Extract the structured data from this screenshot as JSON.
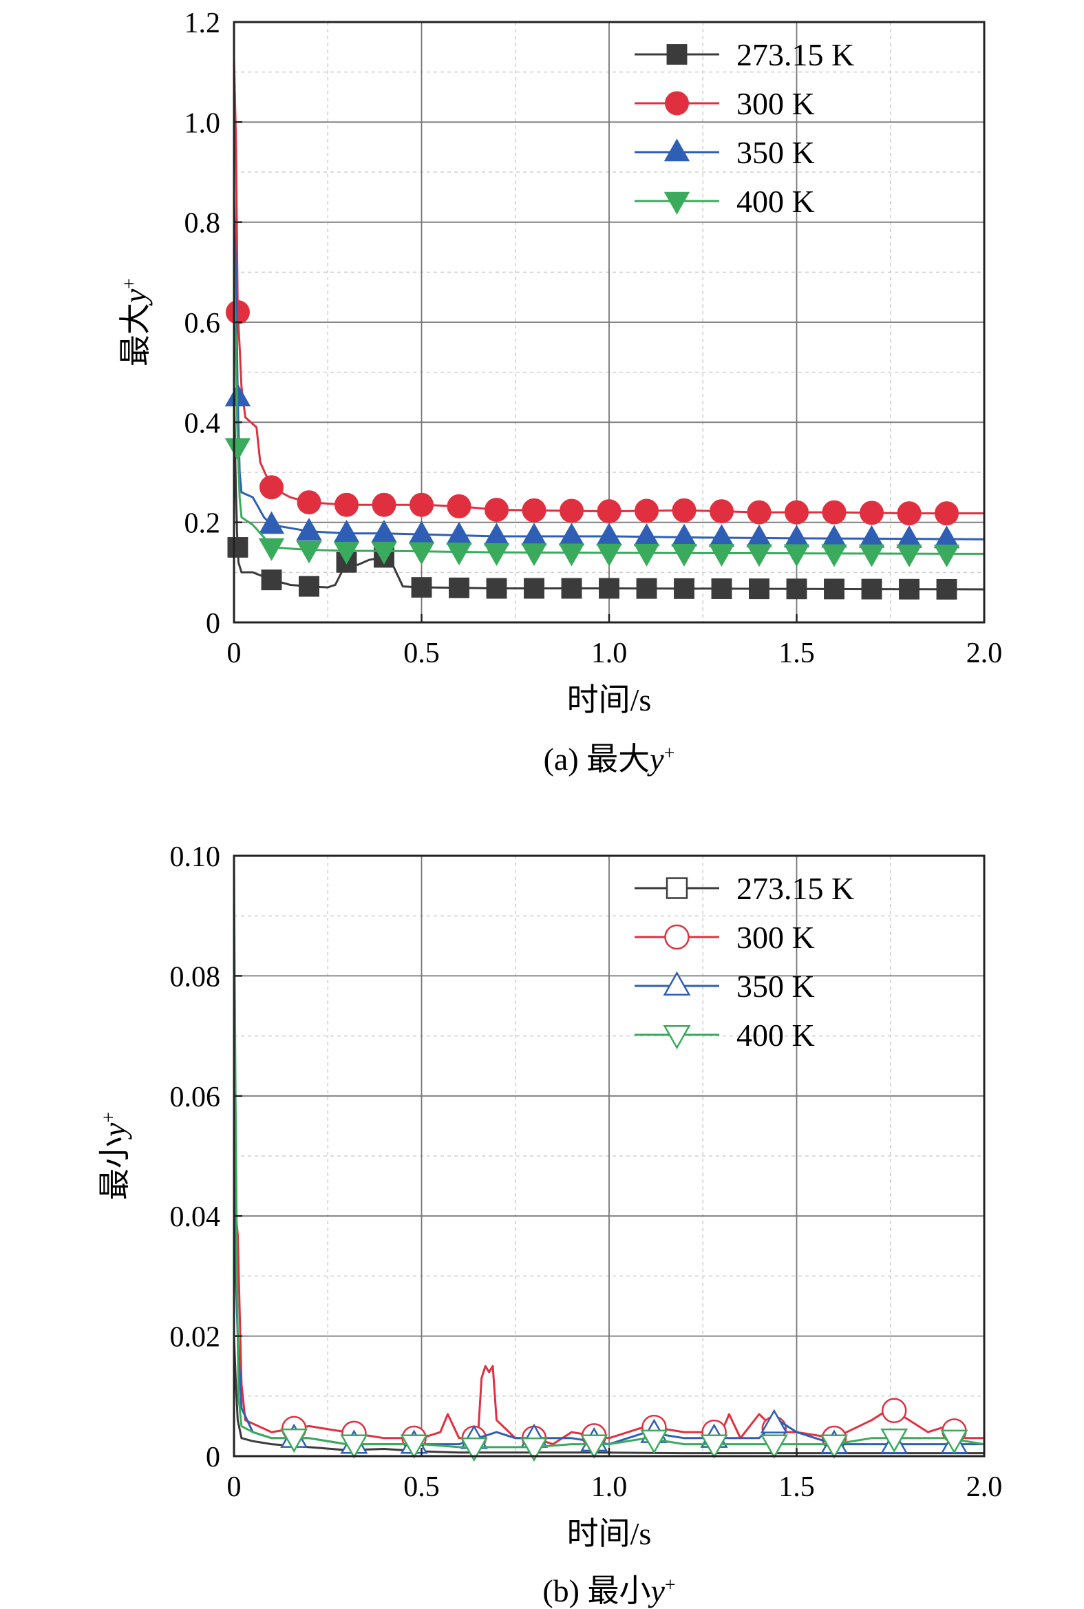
{
  "chart_data": [
    {
      "type": "line",
      "caption": "(a) 最大y+",
      "caption_prefix": "(a) 最大",
      "caption_var": "y",
      "caption_sup": "+",
      "xlabel": "时间/s",
      "ylabel_prefix": "最大",
      "ylabel_var": "y",
      "ylabel_sup": "+",
      "xlim": [
        0,
        2.0
      ],
      "ylim": [
        0,
        1.2
      ],
      "xticks": [
        "0",
        "0.5",
        "1.0",
        "1.5",
        "2.0"
      ],
      "yticks": [
        "0",
        "0.2",
        "0.4",
        "0.6",
        "0.8",
        "1.0",
        "1.2"
      ],
      "grid": true,
      "legend_position": "top-right",
      "series": [
        {
          "name": "273.15 K",
          "color": "#3b3b3b",
          "marker": "square",
          "filled": true,
          "points": [
            [
              0.0,
              0.47
            ],
            [
              0.004,
              0.3
            ],
            [
              0.008,
              0.18
            ],
            [
              0.012,
              0.12
            ],
            [
              0.02,
              0.1
            ],
            [
              0.05,
              0.1
            ],
            [
              0.1,
              0.085
            ],
            [
              0.15,
              0.075
            ],
            [
              0.2,
              0.072
            ],
            [
              0.25,
              0.07
            ],
            [
              0.27,
              0.075
            ],
            [
              0.3,
              0.12
            ],
            [
              0.33,
              0.115
            ],
            [
              0.36,
              0.125
            ],
            [
              0.4,
              0.13
            ],
            [
              0.42,
              0.12
            ],
            [
              0.45,
              0.072
            ],
            [
              0.5,
              0.07
            ],
            [
              0.7,
              0.068
            ],
            [
              1.0,
              0.068
            ],
            [
              1.5,
              0.067
            ],
            [
              2.0,
              0.066
            ]
          ],
          "marker_x": [
            0.01,
            0.1,
            0.2,
            0.3,
            0.4,
            0.5,
            0.6,
            0.7,
            0.8,
            0.9,
            1.0,
            1.1,
            1.2,
            1.3,
            1.4,
            1.5,
            1.6,
            1.7,
            1.8,
            1.9
          ]
        },
        {
          "name": "300 K",
          "color": "#e03040",
          "marker": "circle",
          "filled": true,
          "points": [
            [
              0.0,
              1.13
            ],
            [
              0.005,
              0.97
            ],
            [
              0.01,
              0.62
            ],
            [
              0.015,
              0.55
            ],
            [
              0.02,
              0.47
            ],
            [
              0.03,
              0.41
            ],
            [
              0.06,
              0.39
            ],
            [
              0.07,
              0.32
            ],
            [
              0.1,
              0.27
            ],
            [
              0.15,
              0.25
            ],
            [
              0.2,
              0.24
            ],
            [
              0.3,
              0.235
            ],
            [
              0.4,
              0.235
            ],
            [
              0.5,
              0.235
            ],
            [
              0.6,
              0.232
            ],
            [
              0.7,
              0.225
            ],
            [
              0.8,
              0.224
            ],
            [
              1.0,
              0.222
            ],
            [
              1.2,
              0.224
            ],
            [
              1.4,
              0.22
            ],
            [
              1.6,
              0.22
            ],
            [
              1.8,
              0.218
            ],
            [
              2.0,
              0.218
            ]
          ],
          "marker_x": [
            0.01,
            0.1,
            0.2,
            0.3,
            0.4,
            0.5,
            0.6,
            0.7,
            0.8,
            0.9,
            1.0,
            1.1,
            1.2,
            1.3,
            1.4,
            1.5,
            1.6,
            1.7,
            1.8,
            1.9
          ]
        },
        {
          "name": "350 K",
          "color": "#2e5fb5",
          "marker": "triangle-up",
          "filled": true,
          "points": [
            [
              0.0,
              0.85
            ],
            [
              0.005,
              0.7
            ],
            [
              0.01,
              0.45
            ],
            [
              0.015,
              0.3
            ],
            [
              0.02,
              0.26
            ],
            [
              0.05,
              0.25
            ],
            [
              0.08,
              0.21
            ],
            [
              0.1,
              0.195
            ],
            [
              0.2,
              0.182
            ],
            [
              0.3,
              0.178
            ],
            [
              0.4,
              0.178
            ],
            [
              0.5,
              0.176
            ],
            [
              0.7,
              0.172
            ],
            [
              1.0,
              0.172
            ],
            [
              1.2,
              0.17
            ],
            [
              1.5,
              0.168
            ],
            [
              1.8,
              0.167
            ],
            [
              2.0,
              0.166
            ]
          ],
          "marker_x": [
            0.01,
            0.1,
            0.2,
            0.3,
            0.4,
            0.5,
            0.6,
            0.7,
            0.8,
            0.9,
            1.0,
            1.1,
            1.2,
            1.3,
            1.4,
            1.5,
            1.6,
            1.7,
            1.8,
            1.9
          ]
        },
        {
          "name": "400 K",
          "color": "#3aaa5c",
          "marker": "triangle-down",
          "filled": true,
          "points": [
            [
              0.0,
              0.73
            ],
            [
              0.005,
              0.55
            ],
            [
              0.01,
              0.35
            ],
            [
              0.015,
              0.25
            ],
            [
              0.02,
              0.21
            ],
            [
              0.05,
              0.195
            ],
            [
              0.08,
              0.17
            ],
            [
              0.1,
              0.15
            ],
            [
              0.2,
              0.145
            ],
            [
              0.3,
              0.143
            ],
            [
              0.4,
              0.143
            ],
            [
              0.5,
              0.142
            ],
            [
              0.7,
              0.14
            ],
            [
              1.0,
              0.139
            ],
            [
              1.5,
              0.138
            ],
            [
              2.0,
              0.137
            ]
          ],
          "marker_x": [
            0.01,
            0.1,
            0.2,
            0.3,
            0.4,
            0.5,
            0.6,
            0.7,
            0.8,
            0.9,
            1.0,
            1.1,
            1.2,
            1.3,
            1.4,
            1.5,
            1.6,
            1.7,
            1.8,
            1.9
          ]
        }
      ]
    },
    {
      "type": "line",
      "caption": "(b) 最小y+",
      "caption_prefix": "(b) 最小",
      "caption_var": "y",
      "caption_sup": "+",
      "xlabel": "时间/s",
      "ylabel_prefix": "最小",
      "ylabel_var": "y",
      "ylabel_sup": "+",
      "xlim": [
        0,
        2.0
      ],
      "ylim": [
        0,
        0.1
      ],
      "xticks": [
        "0",
        "0.5",
        "1.0",
        "1.5",
        "2.0"
      ],
      "yticks": [
        "0",
        "0.02",
        "0.04",
        "0.06",
        "0.08",
        "0.10"
      ],
      "grid": true,
      "legend_position": "top-right",
      "series": [
        {
          "name": "273.15 K",
          "color": "#3b3b3b",
          "marker": "square",
          "filled": false,
          "points": [
            [
              0.0,
              0.02
            ],
            [
              0.005,
              0.012
            ],
            [
              0.01,
              0.006
            ],
            [
              0.02,
              0.003
            ],
            [
              0.05,
              0.0025
            ],
            [
              0.1,
              0.002
            ],
            [
              0.2,
              0.0015
            ],
            [
              0.3,
              0.001
            ],
            [
              0.4,
              0.0012
            ],
            [
              0.5,
              0.0008
            ],
            [
              0.6,
              0.0006
            ],
            [
              0.8,
              0.0006
            ],
            [
              1.0,
              0.0006
            ],
            [
              1.2,
              0.0005
            ],
            [
              1.5,
              0.0005
            ],
            [
              1.8,
              0.0005
            ],
            [
              2.0,
              0.0005
            ]
          ],
          "marker_x": []
        },
        {
          "name": "300 K",
          "color": "#e03040",
          "marker": "circle",
          "filled": false,
          "points": [
            [
              0.0,
              0.057
            ],
            [
              0.005,
              0.04
            ],
            [
              0.01,
              0.037
            ],
            [
              0.02,
              0.012
            ],
            [
              0.03,
              0.006
            ],
            [
              0.1,
              0.004
            ],
            [
              0.2,
              0.005
            ],
            [
              0.3,
              0.004
            ],
            [
              0.4,
              0.003
            ],
            [
              0.5,
              0.003
            ],
            [
              0.55,
              0.004
            ],
            [
              0.57,
              0.007
            ],
            [
              0.6,
              0.003
            ],
            [
              0.65,
              0.003
            ],
            [
              0.66,
              0.013
            ],
            [
              0.67,
              0.015
            ],
            [
              0.68,
              0.014
            ],
            [
              0.69,
              0.015
            ],
            [
              0.7,
              0.006
            ],
            [
              0.75,
              0.003
            ],
            [
              0.8,
              0.003
            ],
            [
              0.85,
              0.002
            ],
            [
              0.9,
              0.004
            ],
            [
              1.0,
              0.003
            ],
            [
              1.1,
              0.005
            ],
            [
              1.2,
              0.004
            ],
            [
              1.3,
              0.004
            ],
            [
              1.32,
              0.007
            ],
            [
              1.35,
              0.003
            ],
            [
              1.4,
              0.007
            ],
            [
              1.45,
              0.004
            ],
            [
              1.5,
              0.004
            ],
            [
              1.6,
              0.003
            ],
            [
              1.7,
              0.006
            ],
            [
              1.75,
              0.008
            ],
            [
              1.8,
              0.006
            ],
            [
              1.85,
              0.004
            ],
            [
              1.9,
              0.005
            ],
            [
              1.95,
              0.003
            ],
            [
              2.0,
              0.003
            ]
          ],
          "marker_x": [
            0.16,
            0.32,
            0.48,
            0.64,
            0.8,
            0.96,
            1.12,
            1.28,
            1.44,
            1.6,
            1.76,
            1.92
          ]
        },
        {
          "name": "350 K",
          "color": "#2e5fb5",
          "marker": "triangle-up",
          "filled": false,
          "points": [
            [
              0.0,
              0.047
            ],
            [
              0.005,
              0.03
            ],
            [
              0.01,
              0.02
            ],
            [
              0.02,
              0.008
            ],
            [
              0.05,
              0.004
            ],
            [
              0.1,
              0.003
            ],
            [
              0.2,
              0.003
            ],
            [
              0.3,
              0.002
            ],
            [
              0.4,
              0.002
            ],
            [
              0.5,
              0.002
            ],
            [
              0.6,
              0.002
            ],
            [
              0.7,
              0.004
            ],
            [
              0.75,
              0.003
            ],
            [
              0.8,
              0.003
            ],
            [
              0.9,
              0.003
            ],
            [
              1.0,
              0.002
            ],
            [
              1.1,
              0.004
            ],
            [
              1.2,
              0.003
            ],
            [
              1.3,
              0.003
            ],
            [
              1.4,
              0.003
            ],
            [
              1.45,
              0.006
            ],
            [
              1.5,
              0.004
            ],
            [
              1.6,
              0.002
            ],
            [
              1.8,
              0.002
            ],
            [
              2.0,
              0.002
            ]
          ],
          "marker_x": [
            0.16,
            0.32,
            0.48,
            0.64,
            0.8,
            0.96,
            1.12,
            1.28,
            1.44,
            1.6,
            1.76,
            1.92
          ]
        },
        {
          "name": "400 K",
          "color": "#3aaa5c",
          "marker": "triangle-down",
          "filled": false,
          "points": [
            [
              0.0,
              0.098
            ],
            [
              0.004,
              0.06
            ],
            [
              0.008,
              0.03
            ],
            [
              0.012,
              0.01
            ],
            [
              0.02,
              0.005
            ],
            [
              0.05,
              0.004
            ],
            [
              0.1,
              0.003
            ],
            [
              0.2,
              0.003
            ],
            [
              0.3,
              0.002
            ],
            [
              0.4,
              0.002
            ],
            [
              0.5,
              0.002
            ],
            [
              0.6,
              0.0015
            ],
            [
              0.7,
              0.0015
            ],
            [
              0.8,
              0.0015
            ],
            [
              0.9,
              0.002
            ],
            [
              1.0,
              0.002
            ],
            [
              1.1,
              0.003
            ],
            [
              1.2,
              0.002
            ],
            [
              1.3,
              0.002
            ],
            [
              1.4,
              0.002
            ],
            [
              1.5,
              0.002
            ],
            [
              1.6,
              0.002
            ],
            [
              1.7,
              0.003
            ],
            [
              1.8,
              0.003
            ],
            [
              1.9,
              0.003
            ],
            [
              2.0,
              0.002
            ]
          ],
          "marker_x": [
            0.16,
            0.32,
            0.48,
            0.64,
            0.8,
            0.96,
            1.12,
            1.28,
            1.44,
            1.6,
            1.76,
            1.92
          ]
        }
      ]
    }
  ]
}
